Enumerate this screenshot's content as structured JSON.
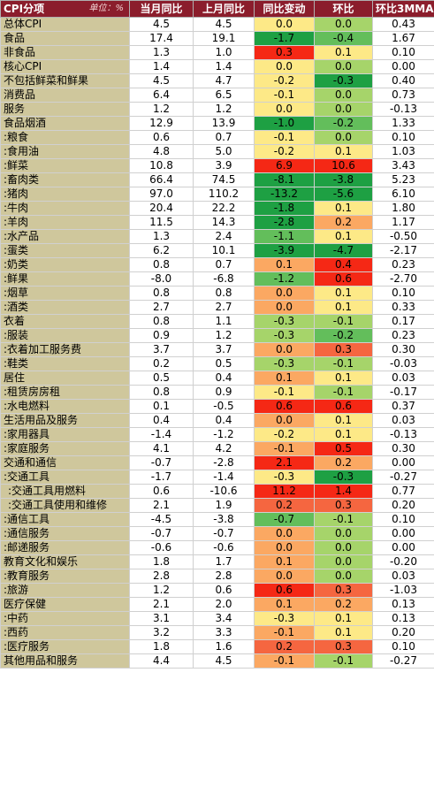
{
  "header": {
    "category": "CPI分项",
    "unit": "单位：%",
    "current_yoy": "当月同比",
    "prev_yoy": "上月同比",
    "yoy_change": "同比变动",
    "mom": "环比",
    "mom_3mma": "环比3MMA"
  },
  "colors": {
    "header_bg": "#8b1d2c",
    "category_bg": "#cfc79c",
    "heat_scale": [
      "#1ea043",
      "#63be5b",
      "#a6d46a",
      "#fde987",
      "#fba862",
      "#f56640",
      "#f52815"
    ]
  },
  "rows": [
    {
      "name": "总体CPI",
      "cur": "4.5",
      "prev": "4.5",
      "chg": "0.0",
      "mom": "0.0",
      "mma": "0.43",
      "chg_c": 3,
      "mom_c": 2,
      "start": true
    },
    {
      "name": "食品",
      "cur": "17.4",
      "prev": "19.1",
      "chg": "-1.7",
      "mom": "-0.4",
      "mma": "1.67",
      "chg_c": 0,
      "mom_c": 1,
      "start": true
    },
    {
      "name": "非食品",
      "cur": "1.3",
      "prev": "1.0",
      "chg": "0.3",
      "mom": "0.1",
      "mma": "0.10",
      "chg_c": 6,
      "mom_c": 3
    },
    {
      "name": "核心CPI",
      "cur": "1.4",
      "prev": "1.4",
      "chg": "0.0",
      "mom": "0.0",
      "mma": "0.00",
      "chg_c": 3,
      "mom_c": 2,
      "start": true
    },
    {
      "name": "不包括鲜菜和鲜果",
      "cur": "4.5",
      "prev": "4.7",
      "chg": "-0.2",
      "mom": "-0.3",
      "mma": "0.40",
      "chg_c": 3,
      "mom_c": 0
    },
    {
      "name": "消费品",
      "cur": "6.4",
      "prev": "6.5",
      "chg": "-0.1",
      "mom": "0.0",
      "mma": "0.73",
      "chg_c": 3,
      "mom_c": 2
    },
    {
      "name": "服务",
      "cur": "1.2",
      "prev": "1.2",
      "chg": "0.0",
      "mom": "0.0",
      "mma": "-0.13",
      "chg_c": 3,
      "mom_c": 2
    },
    {
      "name": "食品烟酒",
      "cur": "12.9",
      "prev": "13.9",
      "chg": "-1.0",
      "mom": "-0.2",
      "mma": "1.33",
      "chg_c": 0,
      "mom_c": 1,
      "start": true
    },
    {
      "name": ":粮食",
      "cur": "0.6",
      "prev": "0.7",
      "chg": "-0.1",
      "mom": "0.0",
      "mma": "0.10",
      "chg_c": 3,
      "mom_c": 2
    },
    {
      "name": ":食用油",
      "cur": "4.8",
      "prev": "5.0",
      "chg": "-0.2",
      "mom": "0.1",
      "mma": "1.03",
      "chg_c": 3,
      "mom_c": 3
    },
    {
      "name": ":鲜菜",
      "cur": "10.8",
      "prev": "3.9",
      "chg": "6.9",
      "mom": "10.6",
      "mma": "3.43",
      "chg_c": 6,
      "mom_c": 6
    },
    {
      "name": ":畜肉类",
      "cur": "66.4",
      "prev": "74.5",
      "chg": "-8.1",
      "mom": "-3.8",
      "mma": "5.23",
      "chg_c": 0,
      "mom_c": 0
    },
    {
      "name": ":猪肉",
      "cur": "97.0",
      "prev": "110.2",
      "chg": "-13.2",
      "mom": "-5.6",
      "mma": "6.10",
      "chg_c": 0,
      "mom_c": 0
    },
    {
      "name": ":牛肉",
      "cur": "20.4",
      "prev": "22.2",
      "chg": "-1.8",
      "mom": "0.1",
      "mma": "1.80",
      "chg_c": 0,
      "mom_c": 3
    },
    {
      "name": ":羊肉",
      "cur": "11.5",
      "prev": "14.3",
      "chg": "-2.8",
      "mom": "0.2",
      "mma": "1.17",
      "chg_c": 0,
      "mom_c": 4
    },
    {
      "name": ":水产品",
      "cur": "1.3",
      "prev": "2.4",
      "chg": "-1.1",
      "mom": "0.1",
      "mma": "-0.50",
      "chg_c": 1,
      "mom_c": 3
    },
    {
      "name": ":蛋类",
      "cur": "6.2",
      "prev": "10.1",
      "chg": "-3.9",
      "mom": "-4.7",
      "mma": "-2.17",
      "chg_c": 0,
      "mom_c": 0
    },
    {
      "name": ":奶类",
      "cur": "0.8",
      "prev": "0.7",
      "chg": "0.1",
      "mom": "0.4",
      "mma": "0.23",
      "chg_c": 4,
      "mom_c": 6
    },
    {
      "name": ":鲜果",
      "cur": "-8.0",
      "prev": "-6.8",
      "chg": "-1.2",
      "mom": "0.6",
      "mma": "-2.70",
      "chg_c": 1,
      "mom_c": 6
    },
    {
      "name": ":烟草",
      "cur": "0.8",
      "prev": "0.8",
      "chg": "0.0",
      "mom": "0.1",
      "mma": "0.10",
      "chg_c": 4,
      "mom_c": 3
    },
    {
      "name": ":酒类",
      "cur": "2.7",
      "prev": "2.7",
      "chg": "0.0",
      "mom": "0.1",
      "mma": "0.33",
      "chg_c": 4,
      "mom_c": 3
    },
    {
      "name": "衣着",
      "cur": "0.8",
      "prev": "1.1",
      "chg": "-0.3",
      "mom": "-0.1",
      "mma": "0.17",
      "chg_c": 2,
      "mom_c": 2,
      "start": true
    },
    {
      "name": ":服装",
      "cur": "0.9",
      "prev": "1.2",
      "chg": "-0.3",
      "mom": "-0.2",
      "mma": "0.23",
      "chg_c": 2,
      "mom_c": 1
    },
    {
      "name": ":衣着加工服务费",
      "cur": "3.7",
      "prev": "3.7",
      "chg": "0.0",
      "mom": "0.3",
      "mma": "0.30",
      "chg_c": 4,
      "mom_c": 5
    },
    {
      "name": ":鞋类",
      "cur": "0.2",
      "prev": "0.5",
      "chg": "-0.3",
      "mom": "-0.1",
      "mma": "-0.03",
      "chg_c": 2,
      "mom_c": 2
    },
    {
      "name": "居住",
      "cur": "0.5",
      "prev": "0.4",
      "chg": "0.1",
      "mom": "0.1",
      "mma": "0.03",
      "chg_c": 4,
      "mom_c": 3,
      "start": true
    },
    {
      "name": ":租赁房房租",
      "cur": "0.8",
      "prev": "0.9",
      "chg": "-0.1",
      "mom": "-0.1",
      "mma": "-0.17",
      "chg_c": 3,
      "mom_c": 2
    },
    {
      "name": ":水电燃料",
      "cur": "0.1",
      "prev": "-0.5",
      "chg": "0.6",
      "mom": "0.6",
      "mma": "0.37",
      "chg_c": 6,
      "mom_c": 6
    },
    {
      "name": "生活用品及服务",
      "cur": "0.4",
      "prev": "0.4",
      "chg": "0.0",
      "mom": "0.1",
      "mma": "0.03",
      "chg_c": 4,
      "mom_c": 3,
      "start": true
    },
    {
      "name": ":家用器具",
      "cur": "-1.4",
      "prev": "-1.2",
      "chg": "-0.2",
      "mom": "0.1",
      "mma": "-0.13",
      "chg_c": 3,
      "mom_c": 3
    },
    {
      "name": ":家庭服务",
      "cur": "4.1",
      "prev": "4.2",
      "chg": "-0.1",
      "mom": "0.5",
      "mma": "0.30",
      "chg_c": 4,
      "mom_c": 6
    },
    {
      "name": "交通和通信",
      "cur": "-0.7",
      "prev": "-2.8",
      "chg": "2.1",
      "mom": "0.2",
      "mma": "0.00",
      "chg_c": 6,
      "mom_c": 4,
      "start": true
    },
    {
      "name": ":交通工具",
      "cur": "-1.7",
      "prev": "-1.4",
      "chg": "-0.3",
      "mom": "-0.3",
      "mma": "-0.27",
      "chg_c": 3,
      "mom_c": 0
    },
    {
      "name": ":交通工具用燃料",
      "cur": "0.6",
      "prev": "-10.6",
      "chg": "11.2",
      "mom": "1.4",
      "mma": "0.77",
      "chg_c": 6,
      "mom_c": 6,
      "indent": true
    },
    {
      "name": ":交通工具使用和维修",
      "cur": "2.1",
      "prev": "1.9",
      "chg": "0.2",
      "mom": "0.3",
      "mma": "0.20",
      "chg_c": 5,
      "mom_c": 5,
      "indent": true
    },
    {
      "name": ":通信工具",
      "cur": "-4.5",
      "prev": "-3.8",
      "chg": "-0.7",
      "mom": "-0.1",
      "mma": "0.10",
      "chg_c": 1,
      "mom_c": 2
    },
    {
      "name": ":通信服务",
      "cur": "-0.7",
      "prev": "-0.7",
      "chg": "0.0",
      "mom": "0.0",
      "mma": "0.00",
      "chg_c": 4,
      "mom_c": 2
    },
    {
      "name": ":邮递服务",
      "cur": "-0.6",
      "prev": "-0.6",
      "chg": "0.0",
      "mom": "0.0",
      "mma": "0.00",
      "chg_c": 4,
      "mom_c": 2
    },
    {
      "name": "教育文化和娱乐",
      "cur": "1.8",
      "prev": "1.7",
      "chg": "0.1",
      "mom": "0.0",
      "mma": "-0.20",
      "chg_c": 4,
      "mom_c": 2,
      "start": true
    },
    {
      "name": ":教育服务",
      "cur": "2.8",
      "prev": "2.8",
      "chg": "0.0",
      "mom": "0.0",
      "mma": "0.03",
      "chg_c": 4,
      "mom_c": 2
    },
    {
      "name": ":旅游",
      "cur": "1.2",
      "prev": "0.6",
      "chg": "0.6",
      "mom": "0.3",
      "mma": "-1.03",
      "chg_c": 6,
      "mom_c": 5
    },
    {
      "name": "医疗保健",
      "cur": "2.1",
      "prev": "2.0",
      "chg": "0.1",
      "mom": "0.2",
      "mma": "0.13",
      "chg_c": 4,
      "mom_c": 4,
      "start": true
    },
    {
      "name": ":中药",
      "cur": "3.1",
      "prev": "3.4",
      "chg": "-0.3",
      "mom": "0.1",
      "mma": "0.13",
      "chg_c": 3,
      "mom_c": 3
    },
    {
      "name": ":西药",
      "cur": "3.2",
      "prev": "3.3",
      "chg": "-0.1",
      "mom": "0.1",
      "mma": "0.20",
      "chg_c": 4,
      "mom_c": 3
    },
    {
      "name": ":医疗服务",
      "cur": "1.8",
      "prev": "1.6",
      "chg": "0.2",
      "mom": "0.3",
      "mma": "0.10",
      "chg_c": 5,
      "mom_c": 5
    },
    {
      "name": "其他用品和服务",
      "cur": "4.4",
      "prev": "4.5",
      "chg": "-0.1",
      "mom": "-0.1",
      "mma": "-0.27",
      "chg_c": 4,
      "mom_c": 2,
      "start": true
    }
  ]
}
